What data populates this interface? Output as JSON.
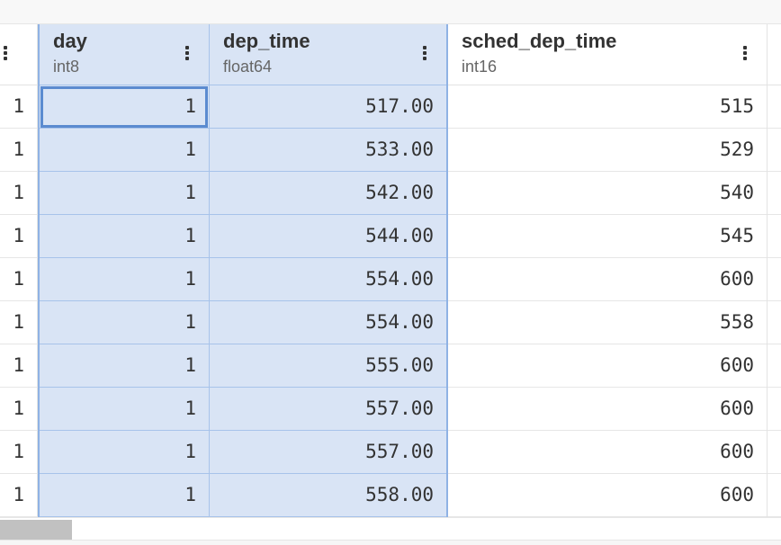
{
  "columns": [
    {
      "name": "",
      "type": "",
      "values": [
        "1",
        "1",
        "1",
        "1",
        "1",
        "1",
        "1",
        "1",
        "1",
        "1"
      ]
    },
    {
      "name": "day",
      "type": "int8",
      "values": [
        "1",
        "1",
        "1",
        "1",
        "1",
        "1",
        "1",
        "1",
        "1",
        "1"
      ]
    },
    {
      "name": "dep_time",
      "type": "float64",
      "values": [
        "517.00",
        "533.00",
        "542.00",
        "544.00",
        "554.00",
        "554.00",
        "555.00",
        "557.00",
        "557.00",
        "558.00"
      ]
    },
    {
      "name": "sched_dep_time",
      "type": "int16",
      "values": [
        "515",
        "529",
        "540",
        "545",
        "600",
        "558",
        "600",
        "600",
        "600",
        "600"
      ]
    }
  ],
  "colors": {
    "selection": "#d9e4f5",
    "selection_border": "#8fb2e4",
    "active_cell_border": "#5b8bd0"
  }
}
